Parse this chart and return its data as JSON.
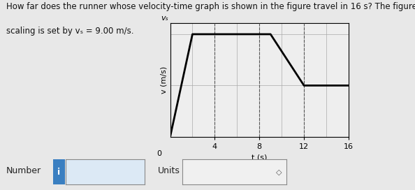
{
  "title_line1": "How far does the runner whose velocity-time graph is shown in the figure travel in 16 s? The figure’s vertical",
  "title_line2": "scaling is set by vₛ = 9.00 m/s.",
  "graph_time": [
    0,
    2,
    9,
    12,
    16
  ],
  "graph_velocity": [
    0,
    9,
    9,
    4.5,
    4.5
  ],
  "vs_label": "vₛ",
  "xlabel": "t (s)",
  "ylabel": "v (m/s)",
  "xticks": [
    4,
    8,
    12,
    16
  ],
  "vs_value": 9.0,
  "half_vs": 4.5,
  "xlim": [
    0,
    16
  ],
  "ylim": [
    0,
    10.0
  ],
  "line_color": "#000000",
  "line_width": 2.0,
  "grid_color": "#aaaaaa",
  "grid_linewidth": 0.5,
  "dashed_t_values": [
    4,
    8,
    12
  ],
  "dashed_color": "#555555",
  "dashed_linewidth": 0.8,
  "bg_color": "#eeeeee",
  "number_label": "Number",
  "units_label": "Units",
  "font_size_title": 8.5,
  "font_size_axis": 8,
  "font_size_tick": 8,
  "info_box_color": "#3a7fc1",
  "num_box_color": "#dce9f5",
  "units_box_color": "#f0f0f0"
}
